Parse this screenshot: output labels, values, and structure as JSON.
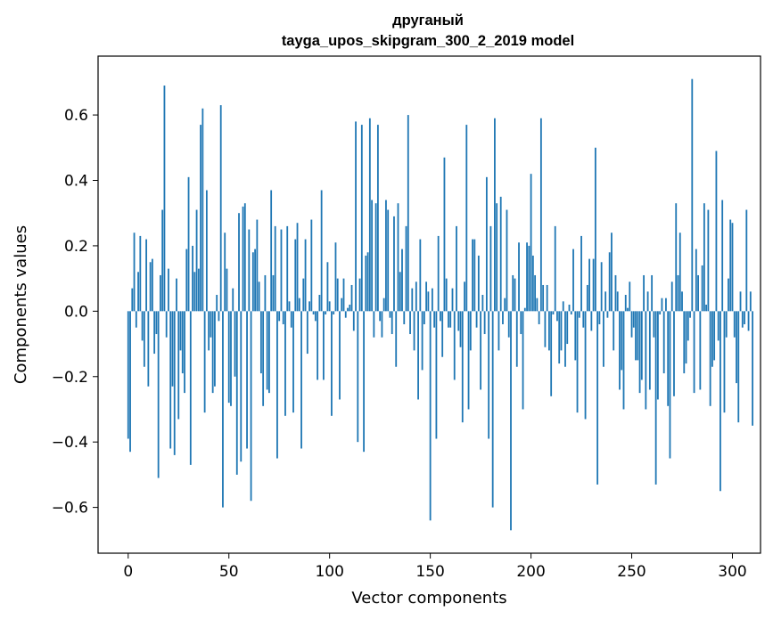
{
  "chart_data": {
    "type": "bar",
    "title": "другaный",
    "subtitle": "tayga_upos_skipgram_300_2_2019 model",
    "xlabel": "Vector components",
    "ylabel": "Components values",
    "xlim": [
      -14.95,
      313.95
    ],
    "ylim": [
      -0.74,
      0.78
    ],
    "xticks": [
      0,
      50,
      100,
      150,
      200,
      250,
      300
    ],
    "yticks": [
      -0.6,
      -0.4,
      -0.2,
      0.0,
      0.2,
      0.4,
      0.6
    ],
    "xtick_labels": [
      "0",
      "50",
      "100",
      "150",
      "200",
      "250",
      "300"
    ],
    "ytick_labels": [
      "−0.6",
      "−0.4",
      "−0.2",
      "0.0",
      "0.2",
      "0.4",
      "0.6"
    ],
    "bar_color": "#1f77b4",
    "x_start": 0,
    "values": [
      -0.39,
      -0.43,
      0.07,
      0.24,
      -0.05,
      0.12,
      0.23,
      -0.09,
      -0.17,
      0.22,
      -0.23,
      0.15,
      0.16,
      -0.13,
      -0.07,
      -0.51,
      0.11,
      0.31,
      0.69,
      -0.08,
      0.13,
      -0.42,
      -0.23,
      -0.44,
      0.1,
      -0.33,
      -0.12,
      -0.19,
      -0.25,
      0.19,
      0.41,
      -0.47,
      0.2,
      0.12,
      0.31,
      0.13,
      0.57,
      0.62,
      -0.31,
      0.37,
      -0.12,
      -0.08,
      -0.25,
      -0.23,
      0.05,
      -0.03,
      0.63,
      -0.6,
      0.24,
      0.13,
      -0.28,
      -0.29,
      0.07,
      -0.2,
      -0.5,
      0.3,
      -0.46,
      0.32,
      0.33,
      -0.42,
      0.25,
      -0.58,
      0.18,
      0.19,
      0.28,
      0.09,
      -0.19,
      -0.29,
      0.11,
      -0.24,
      -0.25,
      0.37,
      0.11,
      0.26,
      -0.45,
      -0.03,
      0.25,
      -0.04,
      -0.32,
      0.26,
      0.03,
      -0.05,
      -0.31,
      0.22,
      0.27,
      0.04,
      -0.42,
      0.1,
      0.22,
      -0.13,
      0.03,
      0.28,
      -0.01,
      -0.03,
      -0.21,
      0.05,
      0.37,
      -0.21,
      -0.01,
      0.15,
      0.03,
      -0.32,
      -0.01,
      0.21,
      0.1,
      -0.27,
      0.04,
      0.1,
      -0.02,
      0.01,
      0.02,
      0.08,
      -0.06,
      0.58,
      -0.4,
      0.1,
      0.57,
      -0.43,
      0.17,
      0.18,
      0.59,
      0.34,
      -0.08,
      0.33,
      0.57,
      -0.03,
      -0.08,
      0.04,
      0.34,
      0.31,
      -0.02,
      -0.07,
      0.29,
      -0.17,
      0.33,
      0.12,
      0.19,
      -0.04,
      0.26,
      0.6,
      -0.07,
      0.07,
      -0.12,
      0.09,
      -0.27,
      0.22,
      -0.18,
      -0.04,
      0.09,
      0.06,
      -0.64,
      0.07,
      -0.05,
      -0.39,
      0.23,
      -0.03,
      -0.14,
      0.47,
      0.1,
      -0.05,
      -0.05,
      0.07,
      -0.21,
      0.26,
      -0.06,
      -0.11,
      -0.34,
      0.09,
      0.57,
      -0.3,
      -0.12,
      0.22,
      0.22,
      -0.05,
      0.17,
      -0.24,
      0.05,
      -0.07,
      0.41,
      -0.39,
      0.26,
      -0.6,
      0.59,
      0.33,
      -0.12,
      0.35,
      -0.04,
      0.04,
      0.31,
      -0.08,
      -0.67,
      0.11,
      0.1,
      -0.17,
      0.21,
      -0.07,
      -0.3,
      0.01,
      0.21,
      0.2,
      0.42,
      0.17,
      0.11,
      0.04,
      -0.04,
      0.59,
      0.08,
      -0.11,
      0.08,
      -0.12,
      -0.26,
      -0.01,
      0.26,
      -0.03,
      -0.16,
      -0.12,
      0.03,
      -0.17,
      -0.1,
      0.02,
      -0.01,
      0.19,
      -0.15,
      -0.31,
      -0.02,
      0.23,
      -0.05,
      -0.33,
      0.08,
      0.16,
      -0.06,
      0.16,
      0.5,
      -0.53,
      -0.04,
      0.15,
      -0.17,
      0.06,
      -0.02,
      0.18,
      0.24,
      -0.12,
      0.11,
      0.06,
      -0.24,
      -0.18,
      -0.3,
      0.05,
      0.01,
      0.09,
      -0.08,
      -0.05,
      -0.15,
      -0.15,
      -0.25,
      -0.21,
      0.11,
      -0.3,
      0.06,
      -0.24,
      0.11,
      -0.08,
      -0.53,
      -0.27,
      -0.01,
      0.04,
      -0.19,
      0.04,
      -0.29,
      -0.45,
      0.09,
      -0.26,
      0.33,
      0.11,
      0.24,
      0.06,
      -0.19,
      -0.16,
      -0.09,
      -0.02,
      0.71,
      -0.25,
      0.19,
      0.11,
      -0.24,
      0.14,
      0.33,
      0.02,
      0.31,
      -0.29,
      -0.17,
      -0.15,
      0.49,
      -0.09,
      -0.55,
      0.34,
      -0.31,
      -0.08,
      0.1,
      0.28,
      0.27,
      -0.08,
      -0.22,
      -0.34,
      0.06,
      -0.05,
      -0.04,
      0.31,
      -0.06,
      0.06,
      -0.35
    ]
  }
}
